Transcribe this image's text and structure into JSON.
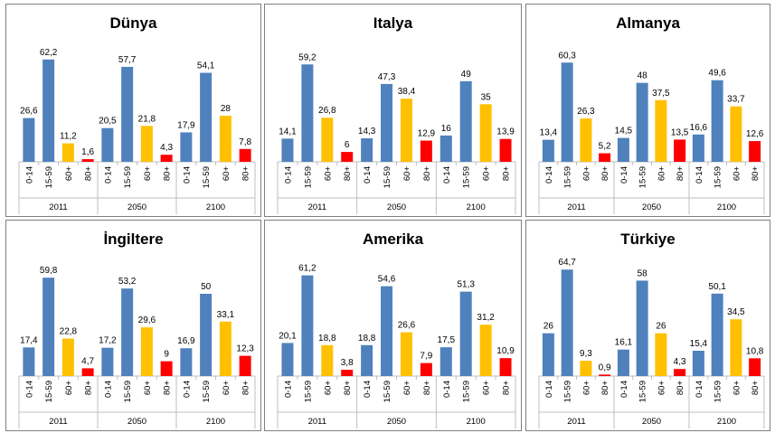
{
  "colors": {
    "0-14": "#4f81bd",
    "15-59": "#4f81bd",
    "60+": "#ffc000",
    "80+": "#ff0000",
    "axis": "#bfbfbf"
  },
  "chart_data": [
    {
      "type": "bar",
      "title": "Dünya",
      "groups": [
        "2011",
        "2050",
        "2100"
      ],
      "categories": [
        "0-14",
        "15-59",
        "60+",
        "80+"
      ],
      "values": [
        [
          26.6,
          62.2,
          11.2,
          1.6
        ],
        [
          20.5,
          57.7,
          21.8,
          4.3
        ],
        [
          17.9,
          54.1,
          28,
          7.8
        ]
      ],
      "labels": [
        [
          "26,6",
          "62,2",
          "11,2",
          "1,6"
        ],
        [
          "20,5",
          "57,7",
          "21,8",
          "4,3"
        ],
        [
          "17,9",
          "54,1",
          "28",
          "7,8"
        ]
      ]
    },
    {
      "type": "bar",
      "title": "Italya",
      "groups": [
        "2011",
        "2050",
        "2100"
      ],
      "categories": [
        "0-14",
        "15-59",
        "60+",
        "80+"
      ],
      "values": [
        [
          14.1,
          59.2,
          26.8,
          6
        ],
        [
          14.3,
          47.3,
          38.4,
          12.9
        ],
        [
          16,
          49,
          35,
          13.9
        ]
      ],
      "labels": [
        [
          "14,1",
          "59,2",
          "26,8",
          "6"
        ],
        [
          "14,3",
          "47,3",
          "38,4",
          "12,9"
        ],
        [
          "16",
          "49",
          "35",
          "13,9"
        ]
      ]
    },
    {
      "type": "bar",
      "title": "Almanya",
      "groups": [
        "2011",
        "2050",
        "2100"
      ],
      "categories": [
        "0-14",
        "15-59",
        "60+",
        "80+"
      ],
      "values": [
        [
          13.4,
          60.3,
          26.3,
          5.2
        ],
        [
          14.5,
          48,
          37.5,
          13.5
        ],
        [
          16.6,
          49.6,
          33.7,
          12.6
        ]
      ],
      "labels": [
        [
          "13,4",
          "60,3",
          "26,3",
          "5,2"
        ],
        [
          "14,5",
          "48",
          "37,5",
          "13,5"
        ],
        [
          "16,6",
          "49,6",
          "33,7",
          "12,6"
        ]
      ]
    },
    {
      "type": "bar",
      "title": "İngiltere",
      "groups": [
        "2011",
        "2050",
        "2100"
      ],
      "categories": [
        "0-14",
        "15-59",
        "60+",
        "80+"
      ],
      "values": [
        [
          17.4,
          59.8,
          22.8,
          4.7
        ],
        [
          17.2,
          53.2,
          29.6,
          9
        ],
        [
          16.9,
          50,
          33.1,
          12.3
        ]
      ],
      "labels": [
        [
          "17,4",
          "59,8",
          "22,8",
          "4,7"
        ],
        [
          "17,2",
          "53,2",
          "29,6",
          "9"
        ],
        [
          "16,9",
          "50",
          "33,1",
          "12,3"
        ]
      ]
    },
    {
      "type": "bar",
      "title": "Amerika",
      "groups": [
        "2011",
        "2050",
        "2100"
      ],
      "categories": [
        "0-14",
        "15-59",
        "60+",
        "80+"
      ],
      "values": [
        [
          20.1,
          61.2,
          18.8,
          3.8
        ],
        [
          18.8,
          54.6,
          26.6,
          7.9
        ],
        [
          17.5,
          51.3,
          31.2,
          10.9
        ]
      ],
      "labels": [
        [
          "20,1",
          "61,2",
          "18,8",
          "3,8"
        ],
        [
          "18,8",
          "54,6",
          "26,6",
          "7,9"
        ],
        [
          "17,5",
          "51,3",
          "31,2",
          "10,9"
        ]
      ]
    },
    {
      "type": "bar",
      "title": "Türkiye",
      "groups": [
        "2011",
        "2050",
        "2100"
      ],
      "categories": [
        "0-14",
        "15-59",
        "60+",
        "80+"
      ],
      "values": [
        [
          26,
          64.7,
          9.3,
          0.9
        ],
        [
          16.1,
          58,
          26,
          4.3
        ],
        [
          15.4,
          50.1,
          34.5,
          10.8
        ]
      ],
      "labels": [
        [
          "26",
          "64,7",
          "9,3",
          "0,9"
        ],
        [
          "16,1",
          "58",
          "26",
          "4,3"
        ],
        [
          "15,4",
          "50,1",
          "34,5",
          "10,8"
        ]
      ]
    }
  ]
}
